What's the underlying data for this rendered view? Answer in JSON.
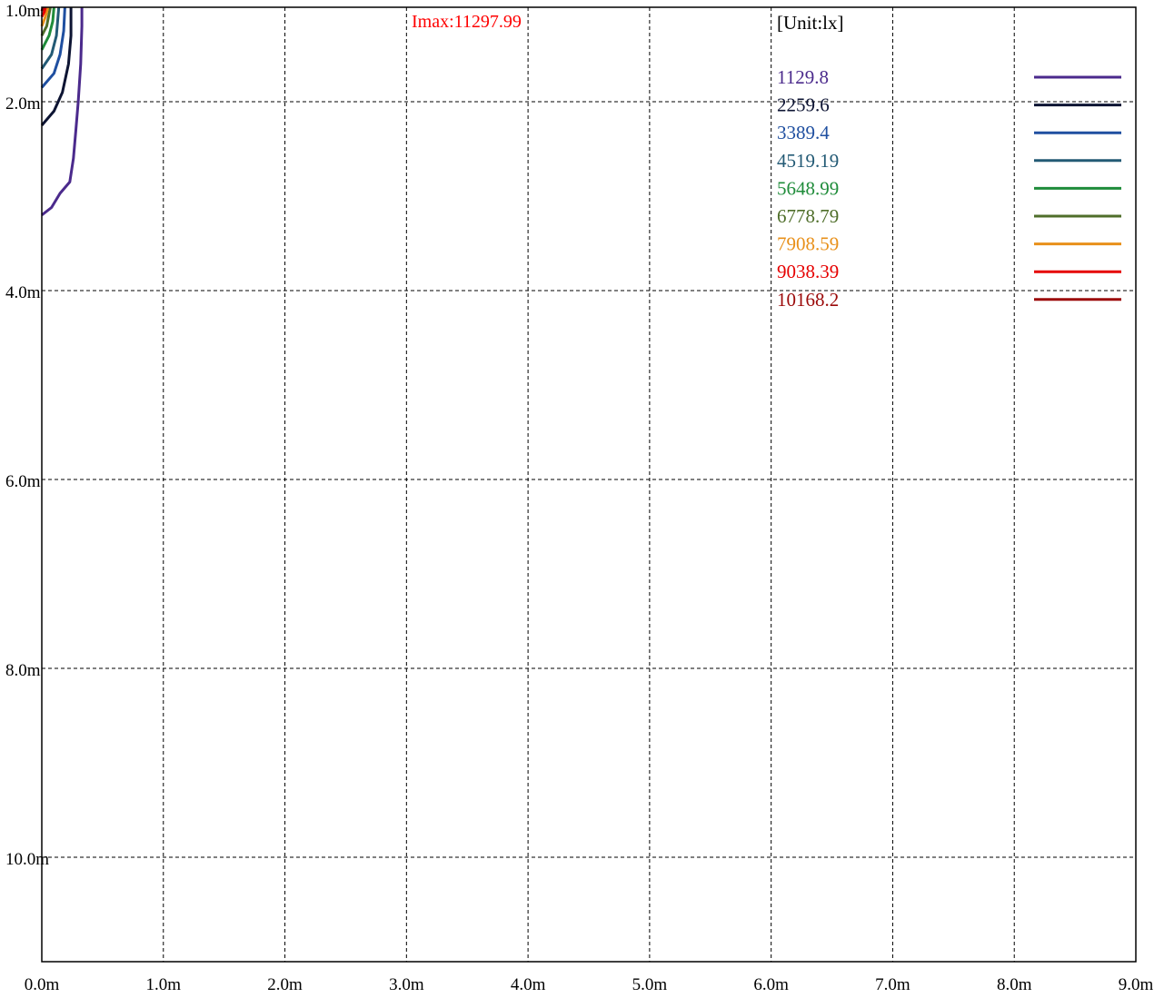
{
  "chart_data": {
    "type": "line",
    "title": "",
    "peak_label": "Imax:11297.99",
    "unit_label": "[Unit:lx]",
    "xlabel": "",
    "ylabel": "",
    "x_ticks": [
      "0.0m",
      "1.0m",
      "2.0m",
      "3.0m",
      "4.0m",
      "5.0m",
      "6.0m",
      "7.0m",
      "8.0m",
      "9.0m"
    ],
    "y_ticks": [
      "1.0m",
      "2.0m",
      "4.0m",
      "6.0m",
      "8.0m",
      "10.0m"
    ],
    "xlim": [
      0,
      9.0
    ],
    "ylim": [
      1.0,
      11.0
    ],
    "y_inverted": true,
    "grid": true,
    "grid_style": "dashed",
    "legend_position": "top-right",
    "colors": {
      "peak": "#ff0000",
      "frame": "#000000",
      "grid": "#000000"
    },
    "series": [
      {
        "name": "1129.8",
        "color": "#4b2a8c",
        "points": [
          [
            0.0,
            3.2
          ],
          [
            0.08,
            3.12
          ],
          [
            0.15,
            2.97
          ],
          [
            0.23,
            2.85
          ],
          [
            0.26,
            2.6
          ],
          [
            0.28,
            2.3
          ],
          [
            0.3,
            2.0
          ],
          [
            0.32,
            1.6
          ],
          [
            0.33,
            1.2
          ],
          [
            0.33,
            1.0
          ]
        ]
      },
      {
        "name": "2259.6",
        "color": "#0d1433",
        "points": [
          [
            0.0,
            2.25
          ],
          [
            0.1,
            2.1
          ],
          [
            0.17,
            1.9
          ],
          [
            0.22,
            1.6
          ],
          [
            0.24,
            1.3
          ],
          [
            0.24,
            1.0
          ]
        ]
      },
      {
        "name": "3389.4",
        "color": "#1f4fa0",
        "points": [
          [
            0.0,
            1.85
          ],
          [
            0.1,
            1.7
          ],
          [
            0.15,
            1.5
          ],
          [
            0.18,
            1.25
          ],
          [
            0.19,
            1.0
          ]
        ]
      },
      {
        "name": "4519.19",
        "color": "#235a75",
        "points": [
          [
            0.0,
            1.65
          ],
          [
            0.08,
            1.5
          ],
          [
            0.12,
            1.3
          ],
          [
            0.14,
            1.0
          ]
        ]
      },
      {
        "name": "5648.99",
        "color": "#1f8c3a",
        "points": [
          [
            0.0,
            1.45
          ],
          [
            0.06,
            1.3
          ],
          [
            0.09,
            1.15
          ],
          [
            0.1,
            1.0
          ]
        ]
      },
      {
        "name": "6778.79",
        "color": "#4f6e2a",
        "points": [
          [
            0.0,
            1.3
          ],
          [
            0.04,
            1.2
          ],
          [
            0.07,
            1.0
          ]
        ]
      },
      {
        "name": "7908.59",
        "color": "#e8901a",
        "points": [
          [
            0.0,
            1.2
          ],
          [
            0.03,
            1.1
          ],
          [
            0.05,
            1.0
          ]
        ]
      },
      {
        "name": "9038.39",
        "color": "#e60000",
        "points": [
          [
            0.0,
            1.1
          ],
          [
            0.02,
            1.05
          ],
          [
            0.03,
            1.0
          ]
        ]
      },
      {
        "name": "10168.2",
        "color": "#9b0a0a",
        "points": [
          [
            0.0,
            1.04
          ],
          [
            0.012,
            1.0
          ]
        ]
      }
    ]
  }
}
